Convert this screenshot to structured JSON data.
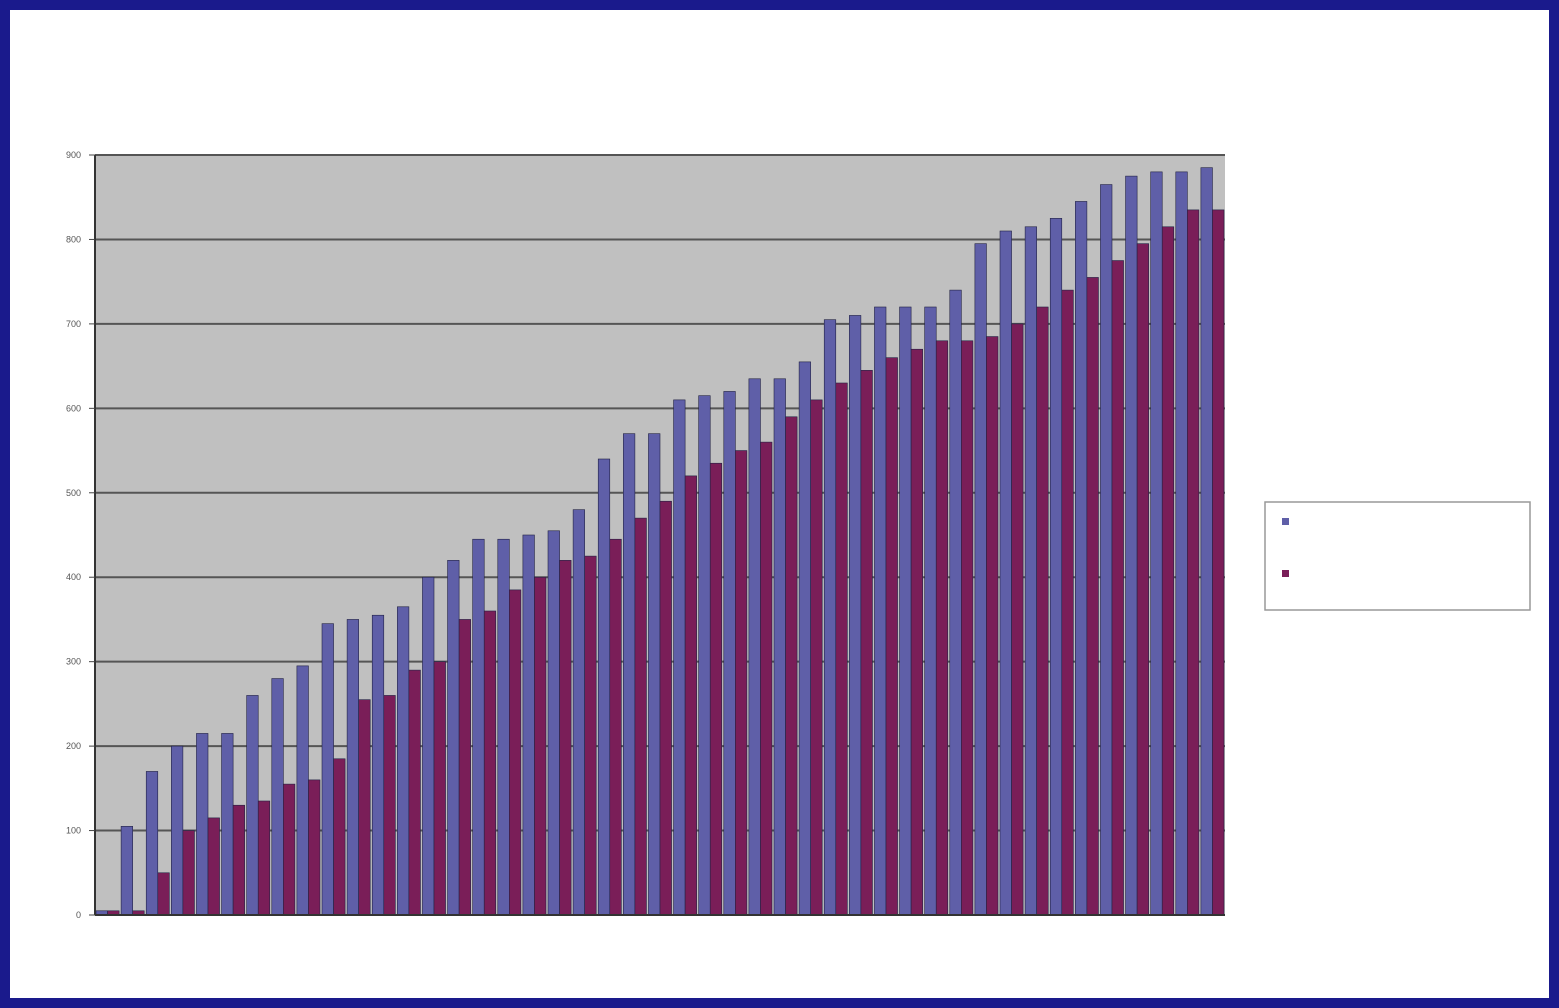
{
  "chart_data": {
    "type": "bar",
    "title": "",
    "xlabel": "",
    "ylabel": "",
    "ylim": [
      0,
      900
    ],
    "yticks": [
      "0",
      "100",
      "200",
      "300",
      "400",
      "500",
      "600",
      "700",
      "800",
      "900"
    ],
    "grid": true,
    "legend_position": "right",
    "categories": [
      "",
      "",
      "",
      "",
      "",
      "",
      "",
      "",
      "",
      "",
      "",
      "",
      "",
      "",
      "",
      "",
      "",
      "",
      "",
      "",
      "",
      "",
      "",
      "",
      "",
      "",
      "",
      "",
      "",
      "",
      "",
      "",
      "",
      "",
      "",
      "",
      "",
      "",
      "",
      "",
      "",
      "",
      "",
      "",
      ""
    ],
    "series": [
      {
        "name": "",
        "color": "#5f5fa8",
        "values": [
          5,
          105,
          170,
          200,
          215,
          215,
          260,
          280,
          295,
          345,
          350,
          355,
          365,
          400,
          420,
          445,
          445,
          450,
          455,
          480,
          540,
          570,
          570,
          610,
          615,
          620,
          635,
          635,
          655,
          705,
          710,
          720,
          720,
          720,
          740,
          795,
          810,
          815,
          825,
          845,
          865,
          875,
          880,
          880,
          885
        ]
      },
      {
        "name": "",
        "color": "#7a1e58",
        "values": [
          5,
          5,
          50,
          100,
          115,
          130,
          135,
          155,
          160,
          185,
          255,
          260,
          290,
          300,
          350,
          360,
          385,
          400,
          420,
          425,
          445,
          470,
          490,
          520,
          535,
          550,
          560,
          590,
          610,
          630,
          645,
          660,
          670,
          680,
          680,
          685,
          700,
          720,
          740,
          755,
          775,
          795,
          815,
          835,
          835
        ]
      }
    ]
  }
}
